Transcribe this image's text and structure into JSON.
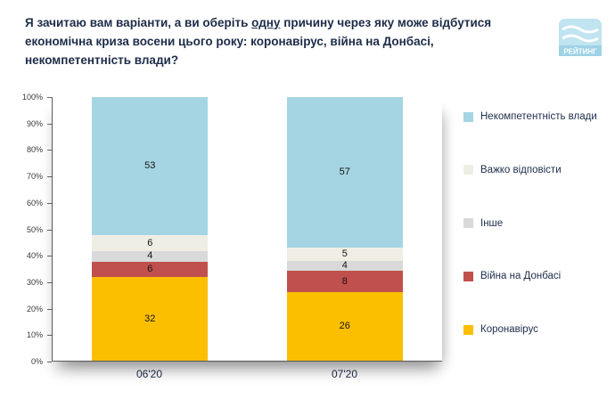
{
  "header": {
    "title_1": "Я зачитаю вам варіанти, а ви оберіть ",
    "title_u": "одну",
    "title_2": " причину через яку може відбутися економічна криза восени цього року: коронавірус, війна на Донбасі, некомпетентність влади?",
    "logo_text": "РЕЙТИНГ"
  },
  "chart_data": {
    "type": "bar",
    "stacked": true,
    "categories": [
      "06'20",
      "07'20"
    ],
    "series": [
      {
        "name": "Коронавірус",
        "color": "#fcbf00",
        "values": [
          32,
          26
        ]
      },
      {
        "name": "Війна на Донбасі",
        "color": "#c0504d",
        "values": [
          6,
          8
        ]
      },
      {
        "name": "Інше",
        "color": "#d9d9d9",
        "values": [
          4,
          4
        ]
      },
      {
        "name": "Важко відповісти",
        "color": "#efeee4",
        "values": [
          6,
          5
        ]
      },
      {
        "name": "Некомпетентність влади",
        "color": "#a5d5e2",
        "values": [
          53,
          57
        ]
      }
    ],
    "series_stack_order": "bottom_to_top",
    "legend": [
      "Некомпетентність влади",
      "Важко відповісти",
      "Інше",
      "Війна на Донбасі",
      "Коронавірус"
    ],
    "legend_position": "right",
    "grid": false,
    "ylim": [
      0,
      100
    ],
    "y_tick_labels": [
      "100%",
      "90%",
      "80%",
      "70%",
      "60%",
      "50%",
      "40%",
      "30%",
      "20%",
      "10%",
      "0%"
    ]
  }
}
